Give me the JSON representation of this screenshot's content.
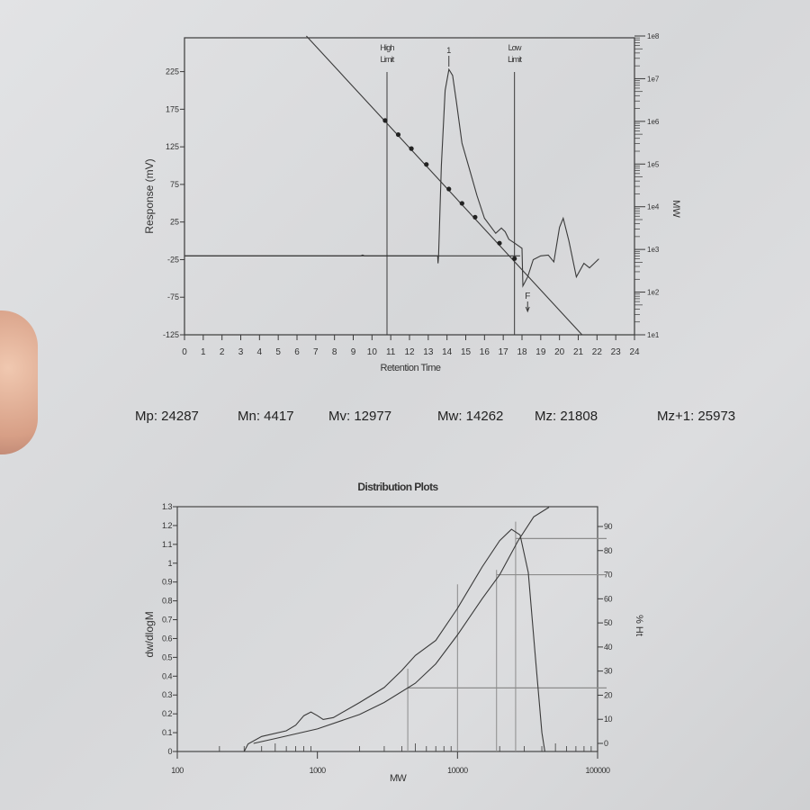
{
  "stats": {
    "mp": "Mp: 24287",
    "mn": "Mn: 4417",
    "mv": "Mv: 12977",
    "mw": "Mw: 14262",
    "mz": "Mz: 21808",
    "mz1": "Mz+1: 25973"
  },
  "chart_data": [
    {
      "type": "line",
      "title": "",
      "xlabel": "Retention Time",
      "ylabel": "Response (mV)",
      "y2label": "MW",
      "xlim": [
        0,
        24
      ],
      "ylim": [
        -125,
        270
      ],
      "y2lim": [
        10,
        100000000
      ],
      "y2scale": "log",
      "xticks": [
        "0",
        "1",
        "2",
        "3",
        "4",
        "5",
        "6",
        "7",
        "8",
        "9",
        "10",
        "11",
        "12",
        "13",
        "14",
        "15",
        "16",
        "17",
        "18",
        "19",
        "20",
        "21",
        "22",
        "23",
        "24"
      ],
      "yticks": [
        "225",
        "175",
        "125",
        "75",
        "25",
        "-25",
        "-75",
        "-125"
      ],
      "y2ticks": [
        "1e1",
        "1e2",
        "1e3",
        "1e4",
        "1e5",
        "1e6",
        "1e7",
        "1e8"
      ],
      "markers": [
        {
          "label": "High Limit",
          "x": 10.8
        },
        {
          "label": "1",
          "x": 14.1
        },
        {
          "label": "Low Limit",
          "x": 17.6
        },
        {
          "label": "F",
          "x": 18.3
        }
      ],
      "series": [
        {
          "kind": "chromatogram",
          "x": [
            0,
            9.4,
            9.5,
            9.6,
            13.5,
            13.52,
            13.55,
            13.7,
            13.9,
            14.1,
            14.3,
            14.5,
            14.8,
            15.2,
            15.6,
            16.0,
            16.6,
            16.9,
            17.1,
            17.3,
            17.6,
            18.0,
            18.05,
            18.3,
            18.6,
            19.0,
            19.4,
            19.7,
            20.0,
            20.2,
            20.5,
            20.9,
            21.3,
            21.6,
            22.1
          ],
          "y": [
            -20,
            -20,
            -19,
            -20,
            -20,
            -30,
            -20,
            100,
            200,
            228,
            220,
            185,
            130,
            95,
            60,
            30,
            10,
            17,
            12,
            2,
            -3,
            -10,
            -60,
            -48,
            -25,
            -20,
            -19,
            -28,
            18,
            30,
            0,
            -48,
            -30,
            -36,
            -24
          ]
        },
        {
          "kind": "baseline",
          "x": [
            0,
            17.9
          ],
          "y": [
            -20,
            -20
          ]
        },
        {
          "kind": "calibration",
          "axis": "MW",
          "x": [
            6.5,
            21.2
          ],
          "y": [
            100000000,
            10
          ]
        },
        {
          "kind": "calibration-standards",
          "axis": "MW",
          "x": [
            10.7,
            11.4,
            12.1,
            12.9,
            14.1,
            14.8,
            15.5,
            16.8,
            17.6
          ],
          "y": [
            1050000,
            490000,
            230000,
            98000,
            26000,
            12000,
            5700,
            1400,
            610
          ]
        }
      ]
    },
    {
      "type": "line",
      "title": "Distribution Plots",
      "xlabel": "MW",
      "ylabel": "dw/dlogM",
      "y2label": "% Ht",
      "xscale": "log",
      "xlim": [
        100,
        100000
      ],
      "ylim": [
        0,
        1.3
      ],
      "y2lim": [
        0,
        90
      ],
      "xticks": [
        "100",
        "1000",
        "10000",
        "100000"
      ],
      "yticks": [
        "0",
        "0.1",
        "0.2",
        "0.3",
        "0.4",
        "0.5",
        "0.6",
        "0.7",
        "0.8",
        "0.9",
        "1",
        "1.1",
        "1.2",
        "1.3"
      ],
      "y2ticks": [
        "0",
        "10",
        "20",
        "30",
        "40",
        "50",
        "60",
        "70",
        "80",
        "90"
      ],
      "series": [
        {
          "kind": "differential",
          "axis": "dw/dlogM",
          "x": [
            300,
            320,
            400,
            600,
            700,
            800,
            900,
            1000,
            1100,
            1300,
            2000,
            3000,
            4000,
            5000,
            7000,
            10000,
            15000,
            20000,
            24287,
            28000,
            32000,
            36000,
            40000,
            42000
          ],
          "y": [
            0,
            0.04,
            0.08,
            0.11,
            0.14,
            0.19,
            0.21,
            0.19,
            0.17,
            0.18,
            0.26,
            0.34,
            0.43,
            0.51,
            0.59,
            0.76,
            0.98,
            1.12,
            1.18,
            1.15,
            0.95,
            0.5,
            0.1,
            0
          ]
        },
        {
          "kind": "cumulative",
          "axis": "% Ht",
          "x": [
            350,
            500,
            1000,
            2000,
            3000,
            5000,
            7000,
            10000,
            15000,
            20000,
            27000,
            35000,
            45000
          ],
          "y": [
            0,
            2,
            6,
            12,
            17,
            25,
            33,
            45,
            60,
            70,
            84,
            94,
            98
          ]
        }
      ]
    }
  ]
}
